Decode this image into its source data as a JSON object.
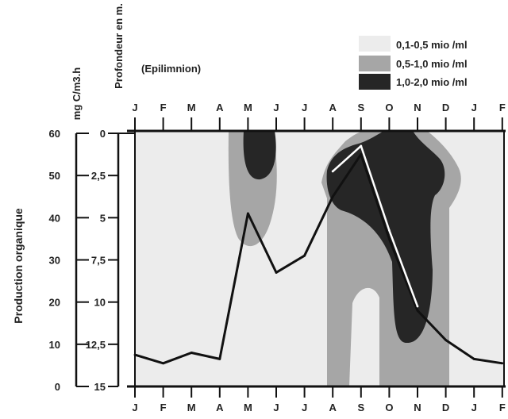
{
  "chart_data": {
    "type": "line",
    "subtitle": "(Epilimnion)",
    "ylabel_left": "Production organique",
    "yunit_left": "mg C/m3.h",
    "ylabel_depth": "Profondeur en m.",
    "months_top": [
      "J",
      "F",
      "M",
      "A",
      "M",
      "J",
      "J",
      "A",
      "S",
      "O",
      "N",
      "D",
      "J",
      "F"
    ],
    "months_bottom": [
      "J",
      "F",
      "M",
      "A",
      "M",
      "J",
      "J",
      "A",
      "S",
      "O",
      "N",
      "D",
      "J",
      "F"
    ],
    "production_ticks": [
      "60",
      "50",
      "40",
      "30",
      "20",
      "10",
      "0"
    ],
    "depth_ticks": [
      "0",
      "2,5",
      "5",
      "7,5",
      "10",
      "12,5",
      "15"
    ],
    "ylim_production": [
      0,
      60
    ],
    "ylim_depth": [
      0,
      15
    ],
    "legend": [
      {
        "label": "0,1-0,5 mio /ml",
        "color": "#ececec"
      },
      {
        "label": "0,5-1,0 mio /ml",
        "color": "#a6a6a6"
      },
      {
        "label": "1,0-2,0 mio /ml",
        "color": "#262626"
      }
    ],
    "legend_position": "top-right",
    "series": [
      {
        "x": [
          0,
          1,
          2,
          3,
          4,
          5,
          6,
          7,
          8,
          9,
          10,
          11,
          12,
          13
        ],
        "values": [
          7.5,
          5.5,
          8,
          6.5,
          41,
          27,
          31,
          45,
          55,
          35,
          18,
          11,
          6.5,
          5.5
        ],
        "color": "#111111"
      },
      {
        "x": [
          7,
          8,
          9,
          10
        ],
        "values": [
          51,
          57,
          37,
          19
        ],
        "color": "#ffffff"
      }
    ]
  }
}
